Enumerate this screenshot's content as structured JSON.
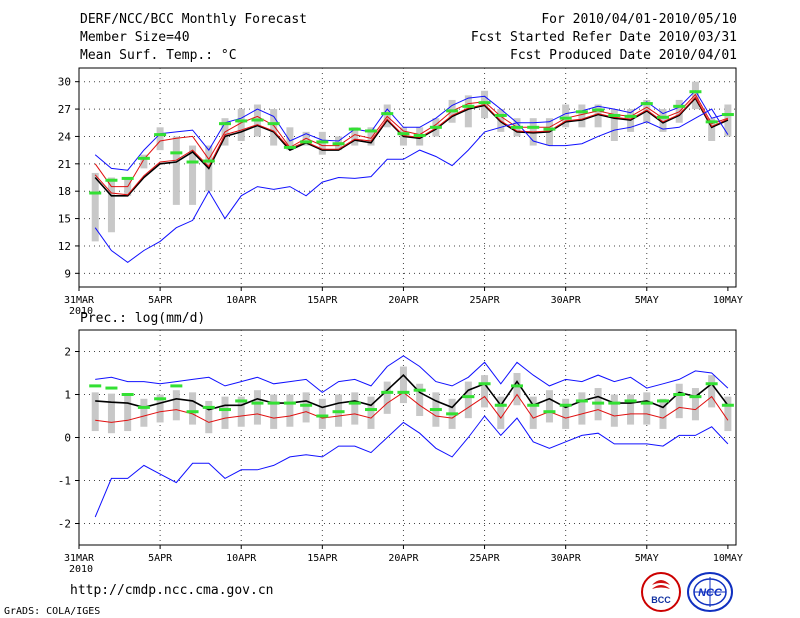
{
  "header": {
    "title": "DERF/NCC/BCC Monthly Forecast",
    "member": "Member Size=40",
    "variable": "Mean Surf. Temp.: °C",
    "for_period": "For 2010/04/01-2010/05/10",
    "fcst_started": "Fcst Started Refer Date 2010/03/31",
    "fcst_produced": "Fcst Produced Date 2010/04/01"
  },
  "footer": {
    "url": "http://cmdp.ncc.cma.gov.cn",
    "grads": "GrADS: COLA/IGES",
    "logo_bcc": "BCC",
    "logo_ncc": "NCC"
  },
  "chart_data": [
    {
      "type": "line",
      "title": "Mean Surf. Temp.: °C",
      "x_tick_labels": [
        "31MAR\n2010",
        "5APR",
        "10APR",
        "15APR",
        "20APR",
        "25APR",
        "30APR",
        "5MAY",
        "10MAY"
      ],
      "x_tick_days": [
        0,
        5,
        10,
        15,
        20,
        25,
        30,
        35,
        40
      ],
      "ylim": [
        7.5,
        31.5
      ],
      "y_ticks": [
        9,
        12,
        15,
        18,
        21,
        24,
        27,
        30
      ],
      "days": [
        1,
        2,
        3,
        4,
        5,
        6,
        7,
        8,
        9,
        10,
        11,
        12,
        13,
        14,
        15,
        16,
        17,
        18,
        19,
        20,
        21,
        22,
        23,
        24,
        25,
        26,
        27,
        28,
        29,
        30,
        31,
        32,
        33,
        34,
        35,
        36,
        37,
        38,
        39,
        40
      ],
      "series": [
        {
          "name": "ensemble max",
          "color": "#1010ff",
          "values": [
            22,
            20.5,
            20.3,
            22.5,
            24.3,
            24.5,
            24.7,
            22.5,
            25.5,
            26,
            27,
            26.2,
            23.5,
            24.3,
            23.6,
            23.5,
            24.8,
            24.5,
            27,
            25,
            25,
            26,
            27.4,
            28.2,
            28.4,
            27,
            25.5,
            25.5,
            25.6,
            26.5,
            26.8,
            27.3,
            27,
            26.6,
            27.8,
            26.5,
            27.2,
            29,
            26,
            26.5
          ]
        },
        {
          "name": "upper bound",
          "color": "#e01010",
          "values": [
            21,
            18.5,
            18.5,
            21.5,
            23.5,
            23.8,
            24,
            21.5,
            24.5,
            25.5,
            26.2,
            25.2,
            22.8,
            23.8,
            23,
            23,
            24.2,
            23.8,
            26.2,
            24.6,
            24.2,
            25.3,
            26.8,
            27.6,
            27.8,
            26.2,
            25,
            25,
            25,
            26,
            26.4,
            26.8,
            26.4,
            26.2,
            27.2,
            26,
            26.7,
            28.6,
            25.4,
            26
          ]
        },
        {
          "name": "ensemble mean",
          "color": "#000000",
          "values": [
            19.5,
            17.5,
            17.5,
            19.5,
            21,
            21.2,
            22.3,
            20.5,
            24,
            24.5,
            25.2,
            24.5,
            22.5,
            23.3,
            22.5,
            22.5,
            23.6,
            23.3,
            25.8,
            24,
            23.8,
            24.8,
            26.2,
            27,
            27.4,
            25.6,
            24.5,
            24.4,
            24.5,
            25.6,
            25.8,
            26.4,
            26,
            25.8,
            26.8,
            25.5,
            26.3,
            28.2,
            25,
            25.8
          ]
        },
        {
          "name": "lower bound",
          "color": "#e01010",
          "values": [
            19.8,
            17.8,
            17.6,
            19.7,
            21.2,
            21.4,
            22.5,
            20.7,
            24.2,
            24.7,
            25.3,
            24.6,
            22.7,
            23.4,
            22.6,
            22.6,
            23.7,
            23.5,
            25.9,
            24.1,
            23.9,
            24.9,
            26.3,
            27.1,
            27.5,
            25.7,
            24.6,
            24.5,
            24.6,
            25.7,
            25.9,
            26.5,
            26.1,
            25.9,
            26.9,
            25.6,
            26.4,
            28.3,
            25.1,
            25.9
          ]
        },
        {
          "name": "ensemble min",
          "color": "#1010ff",
          "values": [
            14,
            11.5,
            10.2,
            11.5,
            12.5,
            14,
            14.8,
            18,
            15,
            17.5,
            18.5,
            18.2,
            18.5,
            17.5,
            19,
            19.5,
            19.4,
            19.6,
            21.5,
            21.5,
            22.5,
            21.8,
            20.8,
            22.5,
            24.5,
            25,
            25.5,
            23.5,
            23,
            23,
            23.2,
            24,
            24.7,
            25,
            25.6,
            24.8,
            25,
            26,
            27,
            24.2
          ]
        }
      ],
      "observations": [
        17.8,
        19.2,
        19.4,
        21.6,
        24.2,
        22.2,
        21.2,
        21.3,
        25.4,
        25.7,
        25.8,
        25.4,
        22.8,
        23.4,
        23.4,
        23.2,
        24.8,
        24.6,
        26.5,
        24.3,
        24.1,
        25,
        26.8,
        27.3,
        27.7,
        26.3,
        25,
        25,
        24.8,
        26,
        26.7,
        26.9,
        26.3,
        26.2,
        27.6,
        26.1,
        27.3,
        28.9,
        25.6,
        26.4
      ],
      "bars": [
        [
          12.5,
          20
        ],
        [
          13.5,
          19.5
        ],
        [
          17.5,
          19.5
        ],
        [
          20.5,
          22
        ],
        [
          22.5,
          25
        ],
        [
          16.5,
          24
        ],
        [
          16.5,
          23
        ],
        [
          18,
          23
        ],
        [
          23,
          26
        ],
        [
          23.5,
          27
        ],
        [
          24,
          27.5
        ],
        [
          23,
          27
        ],
        [
          22.5,
          25
        ],
        [
          23,
          24.5
        ],
        [
          22,
          24.5
        ],
        [
          22.5,
          24
        ],
        [
          23,
          25
        ],
        [
          23,
          25
        ],
        [
          25,
          27.5
        ],
        [
          23,
          25
        ],
        [
          23,
          25
        ],
        [
          24,
          26
        ],
        [
          25.5,
          28
        ],
        [
          25,
          28.5
        ],
        [
          26,
          29
        ],
        [
          24.5,
          27
        ],
        [
          24,
          26
        ],
        [
          23,
          26
        ],
        [
          23,
          26
        ],
        [
          25,
          27.5
        ],
        [
          25,
          27.5
        ],
        [
          25,
          27.5
        ],
        [
          23.5,
          27
        ],
        [
          24.5,
          27
        ],
        [
          25.5,
          28
        ],
        [
          24.5,
          27
        ],
        [
          25.5,
          28
        ],
        [
          27,
          30
        ],
        [
          23.5,
          26
        ],
        [
          24,
          27.5
        ]
      ]
    },
    {
      "type": "line",
      "title": "Prec.: log(mm/d)",
      "x_tick_labels": [
        "31MAR\n2010",
        "5APR",
        "10APR",
        "15APR",
        "20APR",
        "25APR",
        "30APR",
        "5MAY",
        "10MAY"
      ],
      "x_tick_days": [
        0,
        5,
        10,
        15,
        20,
        25,
        30,
        35,
        40
      ],
      "ylim": [
        -2.5,
        2.5
      ],
      "y_ticks": [
        -2,
        -1,
        0,
        1,
        2
      ],
      "days": [
        1,
        2,
        3,
        4,
        5,
        6,
        7,
        8,
        9,
        10,
        11,
        12,
        13,
        14,
        15,
        16,
        17,
        18,
        19,
        20,
        21,
        22,
        23,
        24,
        25,
        26,
        27,
        28,
        29,
        30,
        31,
        32,
        33,
        34,
        35,
        36,
        37,
        38,
        39,
        40
      ],
      "series": [
        {
          "name": "ensemble max",
          "color": "#1010ff",
          "values": [
            1.35,
            1.4,
            1.3,
            1.3,
            1.25,
            1.3,
            1.35,
            1.4,
            1.2,
            1.3,
            1.4,
            1.25,
            1.3,
            1.35,
            1.05,
            1.3,
            1.35,
            1.2,
            1.65,
            1.9,
            1.65,
            1.3,
            1.2,
            1.4,
            1.75,
            1.25,
            1.75,
            1.45,
            1.2,
            1.35,
            1.3,
            1.45,
            1.3,
            1.4,
            1.15,
            1.25,
            1.35,
            1.55,
            1.5,
            1.15
          ]
        },
        {
          "name": "ensemble mean",
          "color": "#000000",
          "values": [
            0.85,
            0.82,
            0.8,
            0.7,
            0.8,
            0.9,
            0.85,
            0.65,
            0.75,
            0.75,
            0.9,
            0.8,
            0.8,
            0.85,
            0.7,
            0.8,
            0.85,
            0.75,
            1.1,
            1.45,
            1.05,
            0.85,
            0.7,
            1.1,
            1.25,
            0.75,
            1.3,
            0.75,
            0.9,
            0.7,
            0.85,
            0.95,
            0.8,
            0.8,
            0.85,
            0.7,
            1.05,
            0.95,
            1.25,
            0.75
          ]
        },
        {
          "name": "mean red",
          "color": "#e01010",
          "values": [
            0.4,
            0.35,
            0.4,
            0.5,
            0.6,
            0.65,
            0.55,
            0.35,
            0.45,
            0.5,
            0.55,
            0.45,
            0.5,
            0.6,
            0.45,
            0.5,
            0.55,
            0.45,
            0.8,
            1.05,
            0.75,
            0.5,
            0.45,
            0.7,
            0.95,
            0.45,
            1.0,
            0.45,
            0.6,
            0.45,
            0.55,
            0.65,
            0.5,
            0.55,
            0.55,
            0.45,
            0.7,
            0.65,
            0.95,
            0.4
          ]
        },
        {
          "name": "ensemble min",
          "color": "#1010ff",
          "values": [
            -1.85,
            -0.95,
            -0.95,
            -0.65,
            -0.85,
            -1.05,
            -0.6,
            -0.6,
            -0.95,
            -0.75,
            -0.75,
            -0.65,
            -0.45,
            -0.4,
            -0.45,
            -0.2,
            -0.2,
            -0.35,
            0.0,
            0.35,
            0.1,
            -0.25,
            -0.45,
            0.0,
            0.5,
            0.05,
            0.45,
            -0.1,
            -0.25,
            -0.1,
            0.05,
            0.1,
            -0.15,
            -0.15,
            -0.15,
            -0.2,
            0.05,
            0.05,
            0.25,
            -0.15
          ]
        }
      ],
      "observations": [
        1.2,
        1.15,
        1.0,
        0.7,
        0.9,
        1.2,
        0.6,
        0.7,
        0.65,
        0.85,
        0.8,
        0.8,
        0.8,
        0.75,
        0.5,
        0.6,
        0.8,
        0.65,
        1.05,
        1.05,
        1.1,
        0.65,
        0.55,
        0.95,
        1.25,
        0.75,
        1.2,
        0.75,
        0.6,
        0.75,
        0.85,
        0.8,
        0.8,
        0.85,
        0.8,
        0.85,
        1.0,
        0.95,
        1.25,
        0.75
      ]
    }
  ]
}
